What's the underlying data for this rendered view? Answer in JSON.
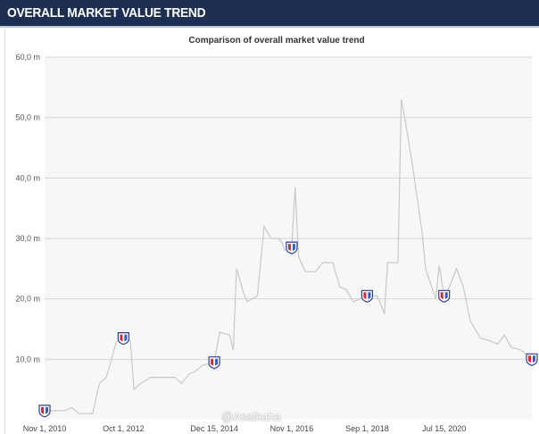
{
  "header": {
    "title": "OVERALL MARKET VALUE TREND"
  },
  "watermark": "@Asalkaha",
  "chart_data": {
    "type": "line",
    "title": "Comparison of overall market value trend",
    "xlabel": "",
    "ylabel": "",
    "ylim": [
      0,
      60
    ],
    "grid": true,
    "y_ticks": [
      "10,0 m",
      "20,0 m",
      "30,0 m",
      "40,0 m",
      "50,0 m",
      "60,0 m"
    ],
    "y_tick_values": [
      10,
      20,
      30,
      40,
      50,
      60
    ],
    "x_ticks": [
      "Nov 1, 2010",
      "Oct 1, 2012",
      "Dec 15, 2014",
      "Nov 1, 2016",
      "Sep 1, 2018",
      "Jul 15, 2020"
    ],
    "x_tick_values": [
      "2010-11-01",
      "2012-10-01",
      "2014-12-15",
      "2016-11-01",
      "2018-09-01",
      "2020-07-15"
    ],
    "xlim": [
      "2010-11-01",
      "2022-09-01"
    ],
    "series": [
      {
        "values_unit": "m",
        "points": [
          [
            "2010-11-01",
            1.5
          ],
          [
            "2011-05-01",
            1.5
          ],
          [
            "2011-07-01",
            2.0
          ],
          [
            "2011-09-01",
            1.0
          ],
          [
            "2012-01-01",
            1.0
          ],
          [
            "2012-03-01",
            6.0
          ],
          [
            "2012-05-01",
            7.0
          ],
          [
            "2012-08-01",
            13.0
          ],
          [
            "2012-10-01",
            13.5
          ],
          [
            "2012-12-01",
            13.0
          ],
          [
            "2013-01-01",
            5.0
          ],
          [
            "2013-03-01",
            6.0
          ],
          [
            "2013-06-01",
            7.0
          ],
          [
            "2013-09-01",
            7.0
          ],
          [
            "2014-01-01",
            7.0
          ],
          [
            "2014-03-01",
            6.0
          ],
          [
            "2014-05-01",
            7.5
          ],
          [
            "2014-07-01",
            8.0
          ],
          [
            "2014-09-01",
            9.0
          ],
          [
            "2014-12-15",
            9.5
          ],
          [
            "2015-02-01",
            14.5
          ],
          [
            "2015-05-01",
            14.0
          ],
          [
            "2015-06-01",
            11.5
          ],
          [
            "2015-07-01",
            25.0
          ],
          [
            "2015-09-01",
            21.0
          ],
          [
            "2015-10-01",
            19.5
          ],
          [
            "2016-01-01",
            20.5
          ],
          [
            "2016-03-01",
            32.0
          ],
          [
            "2016-05-01",
            30.0
          ],
          [
            "2016-07-01",
            30.0
          ],
          [
            "2016-08-01",
            29.5
          ],
          [
            "2016-09-01",
            28.0
          ],
          [
            "2016-11-01",
            28.5
          ],
          [
            "2016-12-01",
            38.5
          ],
          [
            "2017-01-01",
            27.0
          ],
          [
            "2017-03-01",
            24.5
          ],
          [
            "2017-06-01",
            24.5
          ],
          [
            "2017-08-01",
            26.0
          ],
          [
            "2017-11-01",
            26.0
          ],
          [
            "2018-01-01",
            22.0
          ],
          [
            "2018-03-01",
            21.5
          ],
          [
            "2018-05-01",
            19.5
          ],
          [
            "2018-09-01",
            20.5
          ],
          [
            "2018-12-01",
            20.5
          ],
          [
            "2019-02-01",
            17.5
          ],
          [
            "2019-03-01",
            26.0
          ],
          [
            "2019-06-01",
            26.0
          ],
          [
            "2019-07-01",
            53.0
          ],
          [
            "2019-08-01",
            50.0
          ],
          [
            "2019-10-01",
            43.0
          ],
          [
            "2020-01-01",
            31.0
          ],
          [
            "2020-02-01",
            25.0
          ],
          [
            "2020-05-01",
            20.0
          ],
          [
            "2020-06-01",
            25.5
          ],
          [
            "2020-07-15",
            20.5
          ],
          [
            "2020-09-01",
            22.0
          ],
          [
            "2020-11-01",
            25.0
          ],
          [
            "2021-01-01",
            22.0
          ],
          [
            "2021-03-01",
            16.5
          ],
          [
            "2021-06-01",
            13.5
          ],
          [
            "2021-09-01",
            13.0
          ],
          [
            "2021-11-01",
            12.5
          ],
          [
            "2022-01-01",
            14.0
          ],
          [
            "2022-03-01",
            12.0
          ],
          [
            "2022-06-01",
            11.5
          ],
          [
            "2022-09-01",
            10.0
          ]
        ]
      }
    ],
    "club_markers": [
      [
        "2010-11-01",
        1.5
      ],
      [
        "2012-10-01",
        13.5
      ],
      [
        "2014-12-15",
        9.5
      ],
      [
        "2016-11-01",
        28.5
      ],
      [
        "2018-09-01",
        20.5
      ],
      [
        "2020-07-15",
        20.5
      ],
      [
        "2022-09-01",
        10.0
      ]
    ]
  }
}
